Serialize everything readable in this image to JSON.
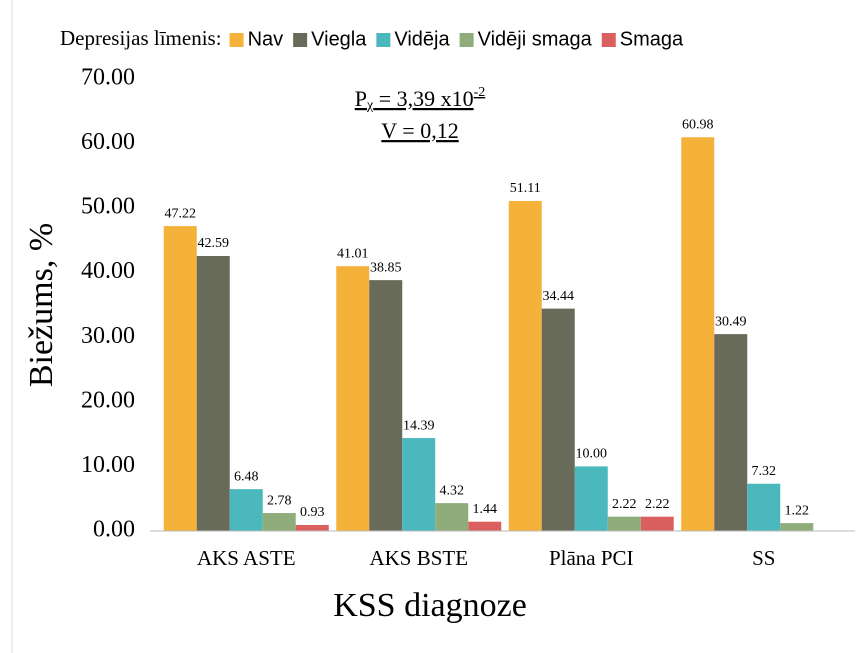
{
  "chart_data": {
    "type": "bar",
    "legend_title": "Depresijas līmenis:",
    "annotation": {
      "p": "P",
      "p_sub": "χ",
      "text": " = 3,39 x10",
      "exponent": "-2",
      "line2": "V = 0,12"
    },
    "xlabel": "KSS diagnoze",
    "ylabel": "Biežums, %",
    "categories": [
      "AKS ASTE",
      "AKS BSTE",
      "Plāna PCI",
      "SS"
    ],
    "series": [
      {
        "name": "Nav",
        "color": "#f4b23a",
        "values": [
          47.22,
          41.01,
          51.11,
          60.98
        ],
        "value_labels": [
          "47.22",
          "41.01",
          "51.11",
          "60.98"
        ]
      },
      {
        "name": "Viegla",
        "color": "#686b5a",
        "values": [
          42.59,
          38.85,
          34.44,
          30.49
        ],
        "value_labels": [
          "42.59",
          "38.85",
          "34.44",
          "30.49"
        ]
      },
      {
        "name": "Vidēja",
        "color": "#4bb8bd",
        "values": [
          6.48,
          14.39,
          10.0,
          7.32
        ],
        "value_labels": [
          "6.48",
          "14.39",
          "10.00",
          "7.32"
        ]
      },
      {
        "name": "Vidēji smaga",
        "color": "#8fad7b",
        "values": [
          2.78,
          4.32,
          2.22,
          1.22
        ],
        "value_labels": [
          "2.78",
          "4.32",
          "2.22",
          "1.22"
        ]
      },
      {
        "name": "Smaga",
        "color": "#d9605e",
        "values": [
          0.93,
          1.44,
          2.22,
          null
        ],
        "value_labels": [
          "0.93",
          "1.44",
          "2.22",
          null
        ]
      }
    ],
    "ylim": [
      0,
      70
    ],
    "yticks": [
      {
        "value": 0,
        "label": "0.00"
      },
      {
        "value": 10,
        "label": "10.00"
      },
      {
        "value": 20,
        "label": "20.00"
      },
      {
        "value": 30,
        "label": "30.00"
      },
      {
        "value": 40,
        "label": "40.00"
      },
      {
        "value": 50,
        "label": "50.00"
      },
      {
        "value": 60,
        "label": "60.00"
      },
      {
        "value": 70,
        "label": "70.00"
      }
    ],
    "legend": "top"
  }
}
